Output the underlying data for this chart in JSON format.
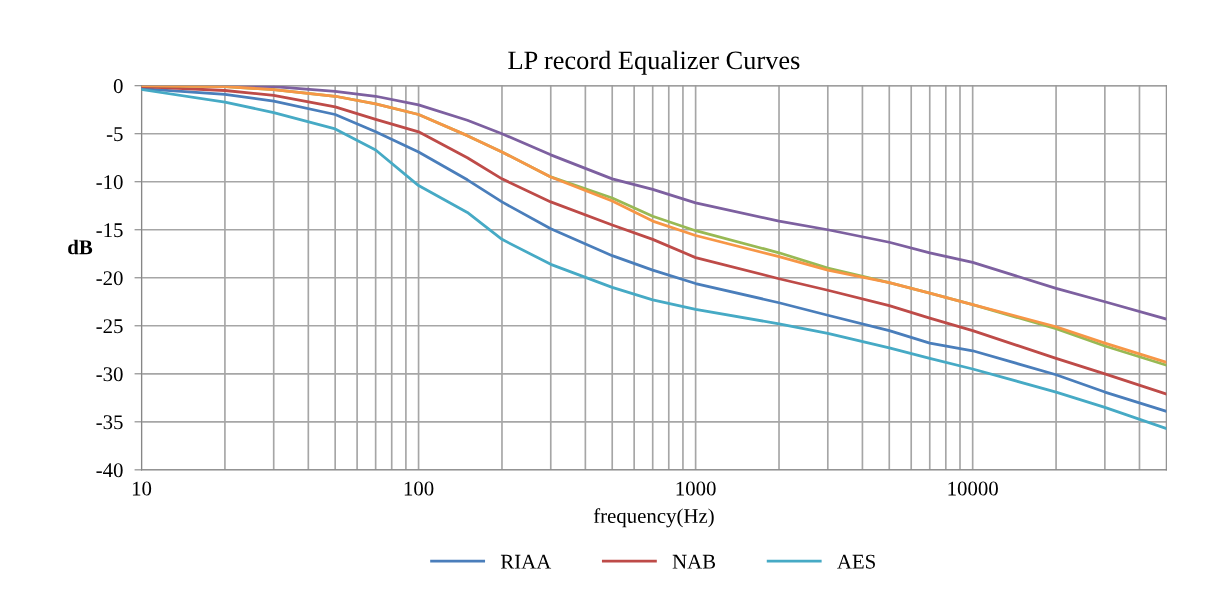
{
  "chart_data": {
    "type": "line",
    "title": "LP record Equalizer Curves",
    "xlabel": "frequency(Hz)",
    "ylabel": "dB",
    "log": "x",
    "grid": true,
    "legend": "bottom",
    "marker": "none",
    "line_style": "solid",
    "xlim": [
      10,
      50000
    ],
    "ylim": [
      -40,
      0
    ],
    "xticks": [
      10,
      {
        "value": 20,
        "label": null
      },
      {
        "value": 30,
        "label": null
      },
      {
        "value": 40,
        "label": null
      },
      {
        "value": 50,
        "label": null
      },
      {
        "value": 60,
        "label": null
      },
      {
        "value": 70,
        "label": null
      },
      {
        "value": 80,
        "label": null
      },
      {
        "value": 90,
        "label": null
      },
      100,
      {
        "value": 200,
        "label": null
      },
      {
        "value": 300,
        "label": null
      },
      {
        "value": 400,
        "label": null
      },
      {
        "value": 500,
        "label": null
      },
      {
        "value": 600,
        "label": null
      },
      {
        "value": 700,
        "label": null
      },
      {
        "value": 800,
        "label": null
      },
      {
        "value": 900,
        "label": null
      },
      1000,
      {
        "value": 2000,
        "label": null
      },
      {
        "value": 3000,
        "label": null
      },
      {
        "value": 4000,
        "label": null
      },
      {
        "value": 5000,
        "label": null
      },
      {
        "value": 6000,
        "label": null
      },
      {
        "value": 7000,
        "label": null
      },
      {
        "value": 8000,
        "label": null
      },
      {
        "value": 9000,
        "label": null
      },
      10000,
      {
        "value": 20000,
        "label": null
      },
      {
        "value": 30000,
        "label": null
      },
      {
        "value": 40000,
        "label": null
      }
    ],
    "yticks": [
      -40,
      -35,
      -30,
      -25,
      -20,
      -15,
      -10,
      -5,
      0
    ],
    "x": [
      10,
      20,
      30,
      50,
      70,
      100,
      150,
      200,
      300,
      500,
      700,
      1000,
      2000,
      3000,
      5000,
      7000,
      10000,
      20000,
      30000,
      50000
    ],
    "series": [
      {
        "name": "RIAA",
        "color": "#4a7ebb",
        "values": [
          -0.3,
          -0.9,
          -1.6,
          -3.0,
          -4.8,
          -6.9,
          -9.8,
          -12.1,
          -14.9,
          -17.7,
          -19.2,
          -20.6,
          -22.6,
          -23.9,
          -25.5,
          -26.8,
          -27.6,
          -30.1,
          -31.9,
          -33.9
        ]
      },
      {
        "name": "NAB",
        "color": "#be4b48",
        "values": [
          -0.1,
          -0.5,
          -1.0,
          -2.2,
          -3.5,
          -4.8,
          -7.5,
          -9.7,
          -12.1,
          -14.5,
          -16.0,
          -17.9,
          -20.1,
          -21.3,
          -22.9,
          -24.2,
          -25.5,
          -28.4,
          -30.0,
          -32.1
        ]
      },
      {
        "color": "#98b954",
        "values": [
          0,
          -0.1,
          -0.4,
          -1.1,
          -1.9,
          -3.0,
          -5.2,
          -6.9,
          -9.5,
          -11.7,
          -13.6,
          -15.1,
          -17.4,
          -19.0,
          -20.5,
          -21.6,
          -22.8,
          -25.3,
          -27.1,
          -29.1
        ]
      },
      {
        "color": "#7d60a0",
        "values": [
          0,
          0,
          -0.1,
          -0.6,
          -1.1,
          -2.0,
          -3.6,
          -5.0,
          -7.2,
          -9.7,
          -10.8,
          -12.2,
          -14.1,
          -15.0,
          -16.3,
          -17.4,
          -18.4,
          -21.1,
          -22.5,
          -24.3
        ]
      },
      {
        "name": "AES",
        "color": "#46aac5",
        "values": [
          -0.4,
          -1.7,
          -2.8,
          -4.5,
          -6.7,
          -10.4,
          -13.2,
          -16.0,
          -18.6,
          -21.0,
          -22.3,
          -23.3,
          -24.8,
          -25.8,
          -27.3,
          -28.4,
          -29.5,
          -31.9,
          -33.5,
          -35.7
        ]
      },
      {
        "color": "#f79646",
        "values": [
          0,
          -0.1,
          -0.4,
          -1.1,
          -1.9,
          -3.0,
          -5.2,
          -6.9,
          -9.5,
          -12.0,
          -14.1,
          -15.6,
          -17.8,
          -19.2,
          -20.5,
          -21.6,
          -22.8,
          -25.1,
          -26.8,
          -28.8
        ]
      }
    ]
  }
}
